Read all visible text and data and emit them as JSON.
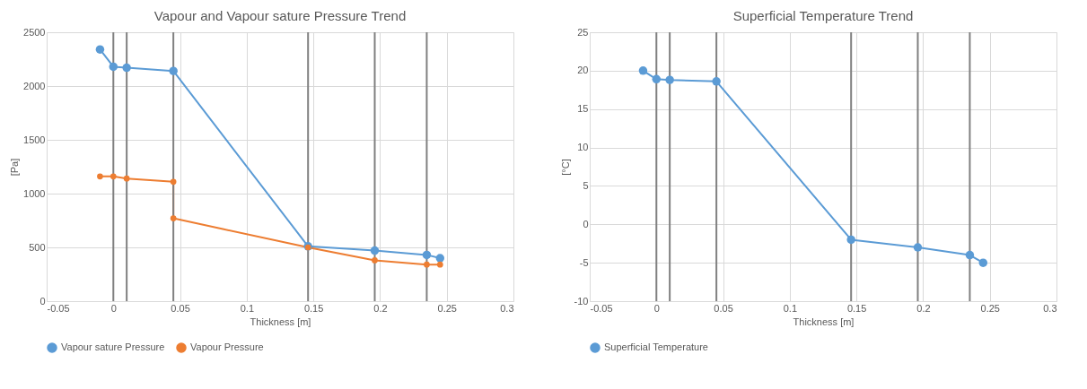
{
  "chart_data": [
    {
      "type": "line",
      "title": "Vapour and Vapour sature Pressure Trend",
      "xlabel": "Thickness [m]",
      "ylabel": "[Pa]",
      "x": [
        -0.01,
        0.0,
        0.01,
        0.045,
        0.146,
        0.196,
        0.235,
        0.245
      ],
      "series": [
        {
          "name": "Vapour sature Pressure",
          "color": "#5b9bd5",
          "values": [
            2340,
            2180,
            2170,
            2140,
            510,
            470,
            430,
            400
          ]
        },
        {
          "name": "Vapour Pressure",
          "color": "#ed7d31",
          "x": [
            -0.01,
            0.0,
            0.01,
            0.045,
            0.045,
            0.146,
            0.196,
            0.235,
            0.245
          ],
          "values": [
            1160,
            1160,
            1140,
            1110,
            770,
            500,
            380,
            340,
            340
          ]
        }
      ],
      "xlim": [
        -0.05,
        0.3
      ],
      "xticks": [
        -0.05,
        0,
        0.05,
        0.1,
        0.15,
        0.2,
        0.25,
        0.3
      ],
      "ylim": [
        0,
        2500
      ],
      "yticks": [
        0,
        500,
        1000,
        1500,
        2000,
        2500
      ],
      "ref_lines": [
        {
          "axis": "x",
          "value": 0,
          "color": "#808080"
        },
        {
          "axis": "x",
          "value": 0.01,
          "color": "#808080"
        },
        {
          "axis": "x",
          "value": 0.045,
          "color": "#808080"
        },
        {
          "axis": "x",
          "value": 0.146,
          "color": "#808080"
        },
        {
          "axis": "x",
          "value": 0.196,
          "color": "#808080"
        },
        {
          "axis": "x",
          "value": 0.235,
          "color": "#808080"
        }
      ],
      "grid": true,
      "legend": "bottom",
      "marker": "circle",
      "line_style": "solid"
    },
    {
      "type": "line",
      "title": "Superficial Temperature Trend",
      "xlabel": "Thickness [m]",
      "ylabel": "[°C]",
      "x": [
        -0.01,
        0.0,
        0.01,
        0.045,
        0.146,
        0.196,
        0.235,
        0.245
      ],
      "series": [
        {
          "name": "Superficial Temperature",
          "color": "#5b9bd5",
          "values": [
            20,
            18.9,
            18.8,
            18.6,
            -2,
            -3,
            -4,
            -5
          ]
        }
      ],
      "xlim": [
        -0.05,
        0.3
      ],
      "xticks": [
        -0.05,
        0,
        0.05,
        0.1,
        0.15,
        0.2,
        0.25,
        0.3
      ],
      "ylim": [
        -10,
        25
      ],
      "yticks": [
        -10,
        -5,
        0,
        5,
        10,
        15,
        20,
        25
      ],
      "ref_lines": [
        {
          "axis": "x",
          "value": 0,
          "color": "#808080"
        },
        {
          "axis": "x",
          "value": 0.01,
          "color": "#808080"
        },
        {
          "axis": "x",
          "value": 0.045,
          "color": "#808080"
        },
        {
          "axis": "x",
          "value": 0.146,
          "color": "#808080"
        },
        {
          "axis": "x",
          "value": 0.196,
          "color": "#808080"
        },
        {
          "axis": "x",
          "value": 0.235,
          "color": "#808080"
        }
      ],
      "grid": true,
      "legend": "bottom",
      "marker": "circle",
      "line_style": "solid"
    }
  ]
}
